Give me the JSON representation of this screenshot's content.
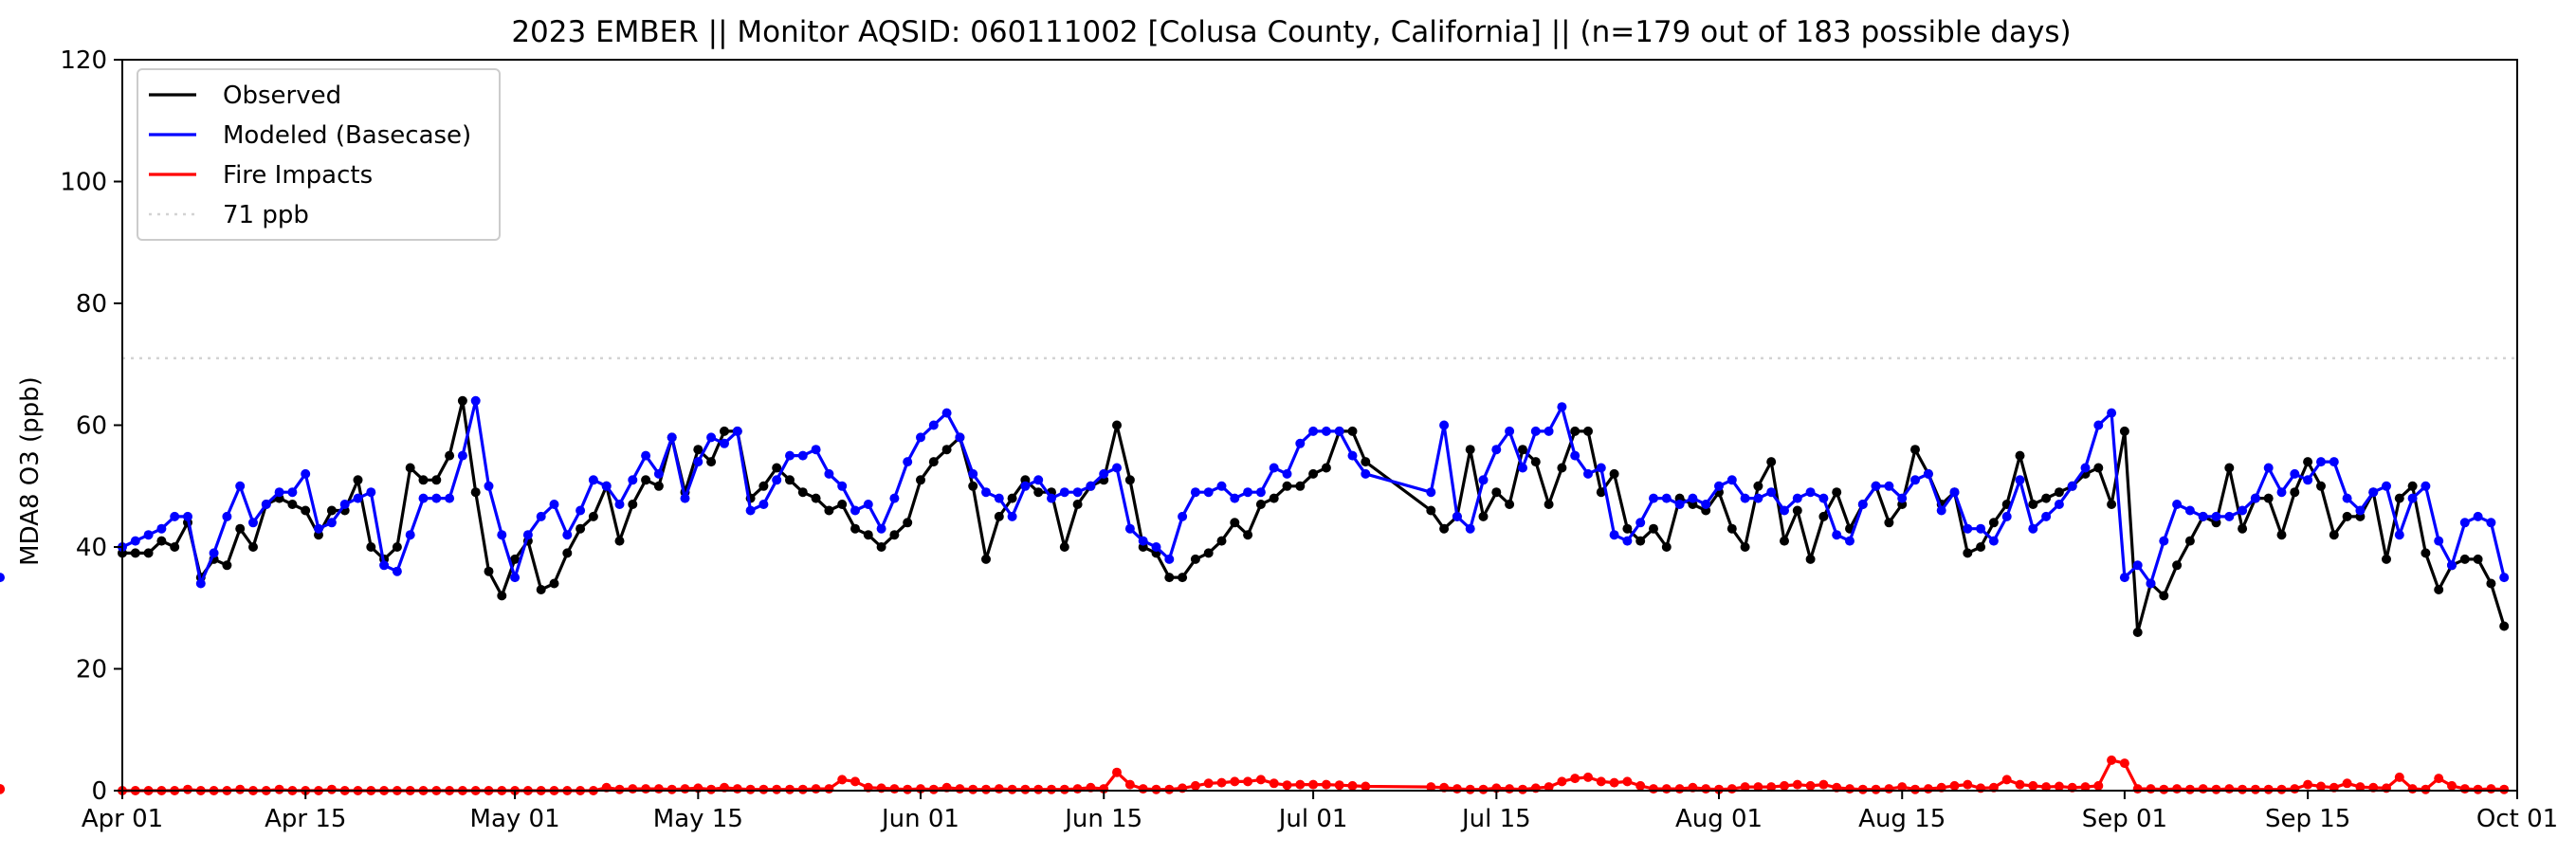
{
  "chart_data": {
    "type": "line",
    "title": "2023 EMBER || Monitor AQSID: 060111002 [Colusa County, California] || (n=179 out of 183 possible days)",
    "xlabel": "",
    "ylabel": "MDA8 O3 (ppb)",
    "x_start": "2023-04-01",
    "xlim": [
      "2023-04-01",
      "2023-10-01"
    ],
    "ylim": [
      0,
      120
    ],
    "yticks": [
      0,
      20,
      40,
      60,
      80,
      100,
      120
    ],
    "xticks": [
      {
        "date": "2023-04-01",
        "label": "Apr 01"
      },
      {
        "date": "2023-04-15",
        "label": "Apr 15"
      },
      {
        "date": "2023-05-01",
        "label": "May 01"
      },
      {
        "date": "2023-05-15",
        "label": "May 15"
      },
      {
        "date": "2023-06-01",
        "label": "Jun 01"
      },
      {
        "date": "2023-06-15",
        "label": "Jun 15"
      },
      {
        "date": "2023-07-01",
        "label": "Jul 01"
      },
      {
        "date": "2023-07-15",
        "label": "Jul 15"
      },
      {
        "date": "2023-08-01",
        "label": "Aug 01"
      },
      {
        "date": "2023-08-15",
        "label": "Aug 15"
      },
      {
        "date": "2023-09-01",
        "label": "Sep 01"
      },
      {
        "date": "2023-09-15",
        "label": "Sep 15"
      },
      {
        "date": "2023-10-01",
        "label": "Oct 01"
      }
    ],
    "grid": false,
    "legend_position": "upper-left",
    "missing_dates": [
      "2023-07-06",
      "2023-07-07",
      "2023-07-08",
      "2023-07-09"
    ],
    "threshold": {
      "name": "71 ppb",
      "value": 71,
      "color": "#d3d3d3",
      "style": "dotted"
    },
    "series": [
      {
        "name": "Observed",
        "color": "#000000",
        "values": [
          39,
          39,
          39,
          41,
          40,
          44,
          35,
          38,
          37,
          43,
          40,
          47,
          48,
          47,
          46,
          42,
          46,
          46,
          51,
          40,
          38,
          40,
          53,
          51,
          51,
          55,
          64,
          49,
          36,
          32,
          38,
          41,
          33,
          34,
          39,
          43,
          45,
          50,
          41,
          47,
          51,
          50,
          58,
          49,
          56,
          54,
          59,
          59,
          48,
          50,
          53,
          51,
          49,
          48,
          46,
          47,
          43,
          42,
          40,
          42,
          44,
          51,
          54,
          56,
          58,
          50,
          38,
          45,
          48,
          51,
          49,
          49,
          40,
          47,
          50,
          51,
          60,
          51,
          40,
          39,
          35,
          35,
          38,
          39,
          41,
          44,
          42,
          47,
          48,
          50,
          50,
          52,
          53,
          59,
          59,
          54,
          46,
          43,
          45,
          56,
          45,
          49,
          47,
          56,
          54,
          47,
          53,
          59,
          59,
          49,
          52,
          43,
          41,
          43,
          40,
          48,
          47,
          46,
          49,
          43,
          40,
          50,
          54,
          41,
          46,
          38,
          45,
          49,
          43,
          47,
          50,
          44,
          47,
          56,
          52,
          47,
          49,
          39,
          40,
          44,
          47,
          55,
          47,
          48,
          49,
          50,
          52,
          53,
          47,
          59,
          26,
          34,
          32,
          37,
          41,
          45,
          44,
          53,
          43,
          48,
          48,
          42,
          49,
          54,
          50,
          42,
          45,
          45,
          49,
          38,
          48,
          50,
          39,
          33,
          37,
          38,
          38,
          34,
          27
        ]
      },
      {
        "name": "Modeled (Basecase)",
        "color": "#0000ff",
        "values": [
          40,
          41,
          42,
          43,
          45,
          45,
          34,
          39,
          45,
          50,
          44,
          47,
          49,
          49,
          52,
          43,
          44,
          47,
          48,
          49,
          37,
          36,
          42,
          48,
          48,
          48,
          55,
          64,
          50,
          42,
          35,
          42,
          45,
          47,
          42,
          46,
          51,
          50,
          47,
          51,
          55,
          52,
          58,
          48,
          54,
          58,
          57,
          59,
          46,
          47,
          51,
          55,
          55,
          56,
          52,
          50,
          46,
          47,
          43,
          48,
          54,
          58,
          60,
          62,
          58,
          52,
          49,
          48,
          45,
          50,
          51,
          48,
          49,
          49,
          50,
          52,
          53,
          43,
          41,
          40,
          38,
          45,
          49,
          49,
          50,
          48,
          49,
          49,
          53,
          52,
          57,
          59,
          59,
          59,
          55,
          52,
          49,
          60,
          45,
          43,
          51,
          56,
          59,
          53,
          59,
          59,
          63,
          55,
          52,
          53,
          42,
          41,
          44,
          48,
          48,
          47,
          48,
          47,
          50,
          51,
          48,
          48,
          49,
          46,
          48,
          49,
          48,
          42,
          41,
          47,
          50,
          50,
          48,
          51,
          52,
          46,
          49,
          43,
          43,
          41,
          45,
          51,
          43,
          45,
          47,
          50,
          53,
          60,
          62,
          35,
          37,
          34,
          41,
          47,
          46,
          45,
          45,
          45,
          46,
          48,
          53,
          49,
          52,
          51,
          54,
          54,
          48,
          46,
          49,
          50,
          42,
          48,
          50,
          41,
          37,
          44,
          45,
          44,
          35,
          35
        ]
      },
      {
        "name": "Fire Impacts",
        "color": "#ff0000",
        "values": [
          0,
          0,
          0,
          0,
          0,
          0.2,
          0,
          0,
          0,
          0.2,
          0,
          0,
          0.2,
          0,
          0,
          0,
          0.2,
          0,
          0,
          0,
          0,
          0,
          0,
          0,
          0,
          0,
          0,
          0,
          0,
          0,
          0,
          0,
          0,
          0,
          0,
          0,
          0,
          0.5,
          0.2,
          0.3,
          0.3,
          0.3,
          0.2,
          0.3,
          0.4,
          0.2,
          0.5,
          0.3,
          0.2,
          0.2,
          0.2,
          0.2,
          0.2,
          0.3,
          0.3,
          1.8,
          1.5,
          0.5,
          0.4,
          0.3,
          0.2,
          0.3,
          0.2,
          0.5,
          0.3,
          0.2,
          0.2,
          0.3,
          0.2,
          0.2,
          0.2,
          0.2,
          0.2,
          0.3,
          0.5,
          0.3,
          3,
          1,
          0.3,
          0.2,
          0.2,
          0.4,
          0.8,
          1.2,
          1.3,
          1.5,
          1.5,
          1.8,
          1.2,
          0.9,
          1,
          1,
          1,
          0.9,
          0.8,
          0.7,
          0.6,
          0.5,
          0.3,
          0.2,
          0.2,
          0.4,
          0.3,
          0.2,
          0.4,
          0.6,
          1.5,
          2,
          2.2,
          1.5,
          1.3,
          1.5,
          0.8,
          0.3,
          0.3,
          0.3,
          0.5,
          0.3,
          0.2,
          0.3,
          0.6,
          0.6,
          0.6,
          0.8,
          1,
          0.8,
          1,
          0.5,
          0.3,
          0.2,
          0.2,
          0.3,
          0.6,
          0.2,
          0.3,
          0.5,
          0.8,
          1,
          0.4,
          0.5,
          1.8,
          1,
          0.8,
          0.6,
          0.7,
          0.5,
          0.6,
          0.8,
          5,
          4.5,
          0.3,
          0.3,
          0.2,
          0.3,
          0.2,
          0.3,
          0.2,
          0.3,
          0.2,
          0.2,
          0.2,
          0.2,
          0.3,
          1,
          0.7,
          0.5,
          1.2,
          0.6,
          0.5,
          0.4,
          2.2,
          0.3,
          0.2,
          2,
          0.8,
          0.3,
          0.2,
          0.3,
          0.2,
          0.2,
          0.3,
          0.3
        ]
      }
    ]
  }
}
